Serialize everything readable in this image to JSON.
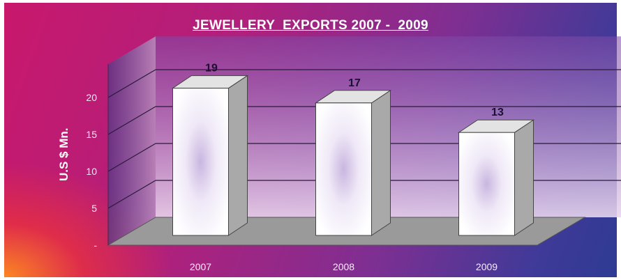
{
  "colors": {
    "background_left": "#c8186c",
    "background_right": "#2e3b92",
    "bar_front": "#ffffff",
    "bar_side": "#a9a9a9",
    "bar_top": "#e3e3e3",
    "floor": "#9a9a9a",
    "value_label": "#1a1030"
  },
  "chart_data": {
    "type": "bar",
    "style": "3d-column",
    "title": "JEWELLERY  EXPORTS 2007 -  2009",
    "xlabel": "",
    "ylabel": "U.S $ Mn.",
    "categories": [
      "2007",
      "2008",
      "2009"
    ],
    "values": [
      19,
      17,
      13
    ],
    "data_labels": [
      "19",
      "17",
      "13"
    ],
    "ylim": [
      0,
      20
    ],
    "yticks": [
      0,
      5,
      10,
      15,
      20
    ],
    "ytick_labels": [
      "-",
      "5",
      "10",
      "15",
      "20"
    ],
    "grid": true,
    "legend": false
  }
}
